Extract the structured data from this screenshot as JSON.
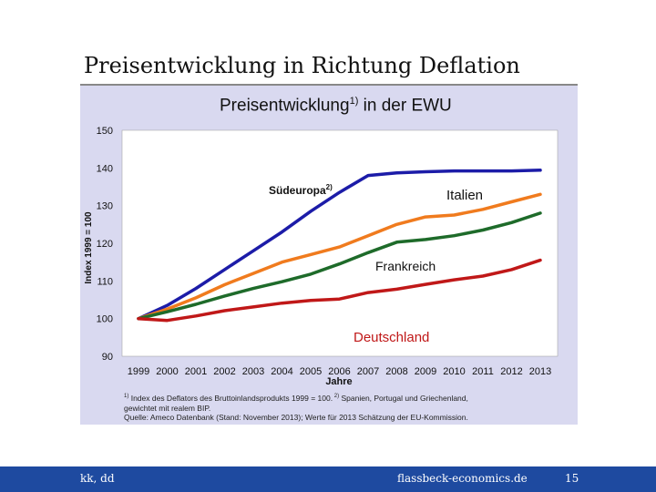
{
  "slide": {
    "title": "Preisentwicklung in Richtung Deflation",
    "footer_left": "kk, dd",
    "footer_center": "flassbeck-economics.de",
    "page_number": "15"
  },
  "chart_data": {
    "type": "line",
    "title": "Preisentwicklung",
    "title_sup": "1)",
    "title_suffix": " in der EWU",
    "xlabel": "Jahre",
    "ylabel": "Index 1999 = 100",
    "x": [
      1999,
      2000,
      2001,
      2002,
      2003,
      2004,
      2005,
      2006,
      2007,
      2008,
      2009,
      2010,
      2011,
      2012,
      2013
    ],
    "x_tick_labels": [
      "1999",
      "2000",
      "2001",
      "2002",
      "2003",
      "2004",
      "2005",
      "2006",
      "2007",
      "2008",
      "2009",
      "2010",
      "2011",
      "2012",
      "2013"
    ],
    "yticks": [
      90,
      100,
      110,
      120,
      130,
      140,
      150
    ],
    "ytick_labels": [
      "90",
      "100",
      "110",
      "120",
      "130",
      "140",
      "150"
    ],
    "ylim": [
      90,
      150
    ],
    "grid": false,
    "legend": "inline labels",
    "series": [
      {
        "name": "Südeuropa",
        "name_sup": "2)",
        "color": "#1c1ca8",
        "values": [
          100,
          103.5,
          108,
          113,
          118,
          123,
          128.5,
          133.5,
          138,
          138.7,
          139,
          139.2,
          139.2,
          139.2,
          139.4
        ]
      },
      {
        "name": "Italien",
        "color": "#f07b1e",
        "values": [
          100,
          102.5,
          105.5,
          109,
          112,
          115,
          117,
          119,
          122,
          125,
          127,
          127.5,
          129,
          131,
          133
        ]
      },
      {
        "name": "Frankreich",
        "color": "#1e6b2a",
        "values": [
          100,
          101.8,
          103.8,
          106,
          108,
          109.8,
          111.8,
          114.5,
          117.5,
          120.3,
          121,
          122,
          123.5,
          125.5,
          128
        ]
      },
      {
        "name": "Deutschland",
        "color": "#c01818",
        "values": [
          100,
          99.5,
          100.7,
          102.1,
          103.1,
          104.1,
          104.8,
          105.2,
          106.9,
          107.8,
          109.1,
          110.3,
          111.3,
          113,
          115.5
        ]
      }
    ]
  },
  "footnotes": {
    "note1_sup": "1)",
    "note1_text": " Index des Deflators des Bruttoinlandsprodukts 1999 = 100.",
    "note2_sup": " 2)",
    "note2_text": " Spanien, Portugal und Griechenland,",
    "note2_cont": "gewichtet mit realem BIP.",
    "source": "Quelle: Ameco Datenbank (Stand: November 2013); Werte für 2013 Schätzung der EU-Kommission."
  }
}
